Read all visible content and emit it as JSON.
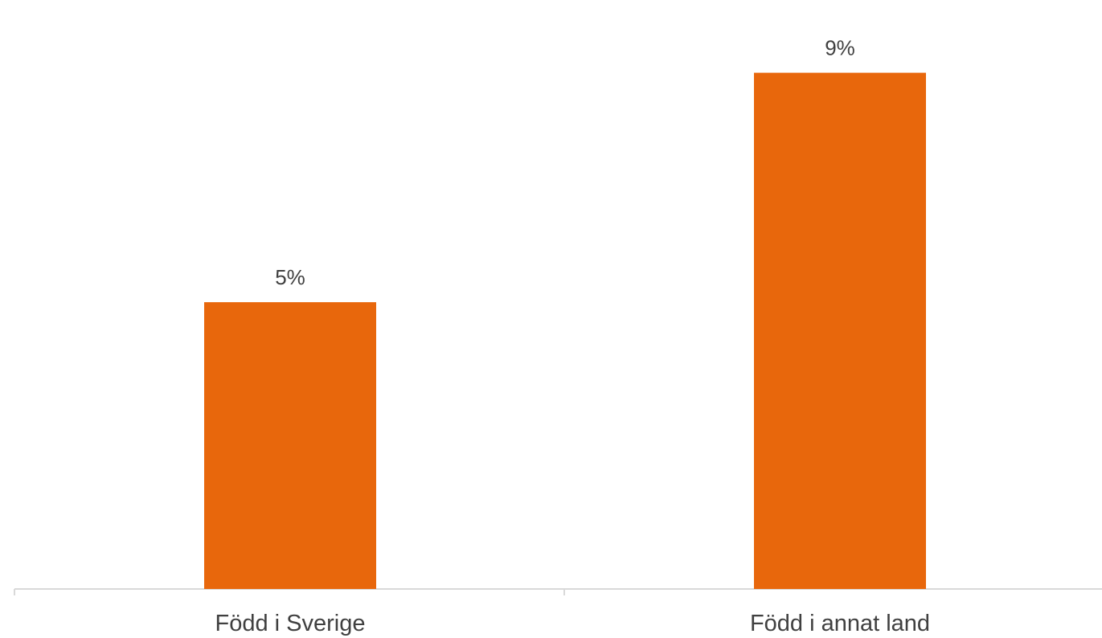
{
  "chart_data": {
    "type": "bar",
    "categories": [
      "Född i Sverige",
      "Född i annat land"
    ],
    "values": [
      5,
      9
    ],
    "data_labels": [
      "5%",
      "9%"
    ],
    "ylim": [
      0,
      9.4
    ],
    "grid": false,
    "legend": "none",
    "bar_color": "#E8670C",
    "axis_color": "#D9D9D9",
    "text_color": "#404040"
  }
}
